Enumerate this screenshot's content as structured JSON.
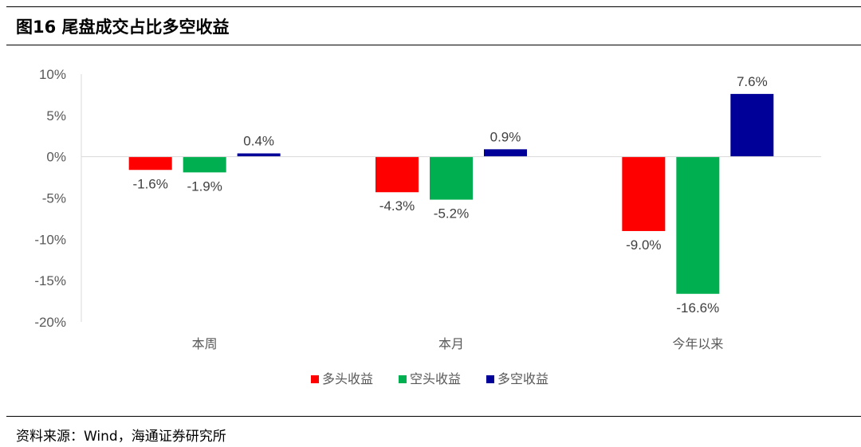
{
  "header": {
    "title": "图16 尾盘成交占比多空收益"
  },
  "footer": {
    "source": "资料来源：Wind，海通证券研究所"
  },
  "chart_data": {
    "type": "bar",
    "title": "",
    "xlabel": "",
    "ylabel": "",
    "categories": [
      "本周",
      "本月",
      "今年以来"
    ],
    "series": [
      {
        "name": "多头收益",
        "color": "#ff0000",
        "values": [
          -1.6,
          -4.3,
          -9.0
        ],
        "labels": [
          "-1.6%",
          "-4.3%",
          "-9.0%"
        ]
      },
      {
        "name": "空头收益",
        "color": "#00b050",
        "values": [
          -1.9,
          -5.2,
          -16.6
        ],
        "labels": [
          "-1.9%",
          "-5.2%",
          "-16.6%"
        ]
      },
      {
        "name": "多空收益",
        "color": "#000099",
        "values": [
          0.4,
          0.9,
          7.6
        ],
        "labels": [
          "0.4%",
          "0.9%",
          "7.6%"
        ]
      }
    ],
    "ylim": [
      -20,
      10
    ],
    "yticks": [
      10,
      5,
      0,
      -5,
      -10,
      -15,
      -20
    ],
    "ytick_labels": [
      "10%",
      "5%",
      "0%",
      "-5%",
      "-10%",
      "-15%",
      "-20%"
    ],
    "grid": false,
    "legend_position": "bottom"
  }
}
